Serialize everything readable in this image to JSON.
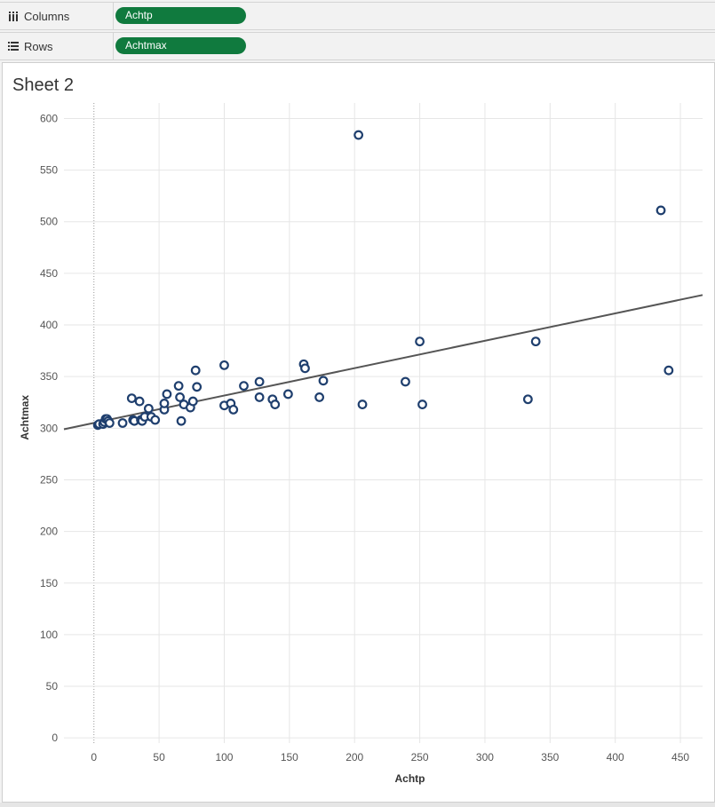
{
  "columns_shelf": {
    "label": "Columns",
    "pill": "Achtp"
  },
  "rows_shelf": {
    "label": "Rows",
    "pill": "Achtmax"
  },
  "sheet": {
    "title": "Sheet 2"
  },
  "colors": {
    "marker": "#1f3f6e",
    "trend": "#555555",
    "grid": "#e6e6e6",
    "pill": "#107a3e"
  },
  "chart_data": {
    "type": "scatter",
    "xlabel": "Achtp",
    "ylabel": "Achtmax",
    "xlim": [
      -23,
      467
    ],
    "ylim": [
      -5,
      615
    ],
    "xticks": [
      0,
      50,
      100,
      150,
      200,
      250,
      300,
      350,
      400,
      450
    ],
    "yticks": [
      0,
      50,
      100,
      150,
      200,
      250,
      300,
      350,
      400,
      450,
      500,
      550,
      600
    ],
    "grid": true,
    "trend_line": {
      "x": [
        -23,
        467
      ],
      "y": [
        299,
        429
      ]
    },
    "points": [
      [
        3,
        303
      ],
      [
        4,
        304
      ],
      [
        7,
        304
      ],
      [
        8,
        306
      ],
      [
        9,
        309
      ],
      [
        10,
        309
      ],
      [
        11,
        307
      ],
      [
        12,
        305
      ],
      [
        22,
        305
      ],
      [
        29,
        329
      ],
      [
        30,
        308
      ],
      [
        31,
        307
      ],
      [
        35,
        326
      ],
      [
        36,
        308
      ],
      [
        37,
        307
      ],
      [
        39,
        311
      ],
      [
        42,
        319
      ],
      [
        44,
        311
      ],
      [
        47,
        308
      ],
      [
        54,
        318
      ],
      [
        54,
        324
      ],
      [
        56,
        333
      ],
      [
        65,
        341
      ],
      [
        66,
        330
      ],
      [
        67,
        307
      ],
      [
        69,
        323
      ],
      [
        74,
        320
      ],
      [
        76,
        326
      ],
      [
        78,
        356
      ],
      [
        79,
        340
      ],
      [
        100,
        322
      ],
      [
        100,
        361
      ],
      [
        105,
        324
      ],
      [
        107,
        318
      ],
      [
        115,
        341
      ],
      [
        127,
        345
      ],
      [
        127,
        330
      ],
      [
        137,
        328
      ],
      [
        139,
        323
      ],
      [
        149,
        333
      ],
      [
        161,
        362
      ],
      [
        162,
        358
      ],
      [
        173,
        330
      ],
      [
        176,
        346
      ],
      [
        203,
        584
      ],
      [
        206,
        323
      ],
      [
        239,
        345
      ],
      [
        250,
        384
      ],
      [
        252,
        323
      ],
      [
        333,
        328
      ],
      [
        339,
        384
      ],
      [
        435,
        511
      ],
      [
        441,
        356
      ]
    ]
  }
}
